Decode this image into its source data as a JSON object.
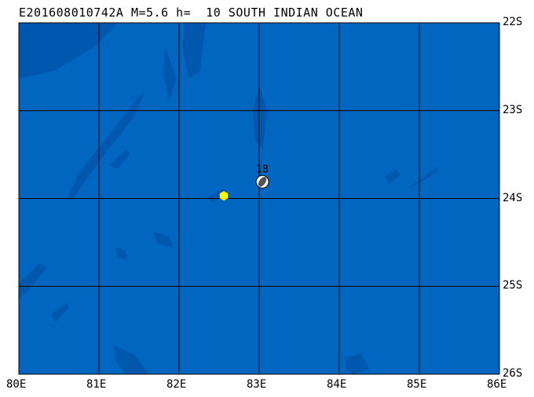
{
  "title": "E201608010742A M=5.6 h=  10 SOUTH INDIAN OCEAN",
  "map": {
    "lon_range": [
      80,
      86
    ],
    "lat_range": [
      -22,
      -26
    ],
    "ocean_color": "#0066C0",
    "deep_color": "#0057AE",
    "grid_color": "#000000",
    "lon_labels": [
      "80E",
      "81E",
      "82E",
      "83E",
      "84E",
      "85E",
      "86E"
    ],
    "lat_labels": [
      "22S",
      "23S",
      "24S",
      "25S",
      "26S"
    ]
  },
  "event": {
    "lon": 83.04,
    "lat": -23.81,
    "label": "18",
    "type": "focal-mechanism-beachball"
  },
  "marker": {
    "lon": 82.56,
    "lat": -23.97,
    "color": "#FFFF00",
    "shape": "hexagon"
  }
}
